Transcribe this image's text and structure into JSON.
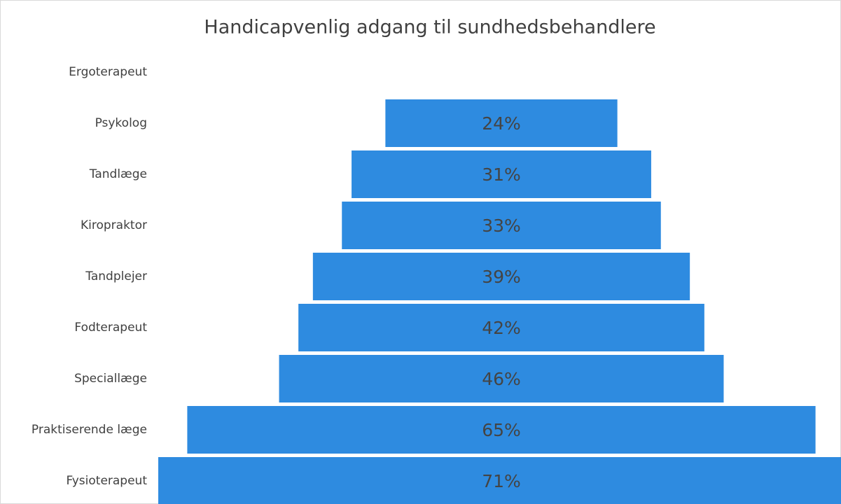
{
  "chart_data": {
    "type": "funnel",
    "title": "Handicapvenlig adgang til sundhedsbehandlere",
    "categories": [
      "Ergoterapeut",
      "Psykolog",
      "Tandlæge",
      "Kiropraktor",
      "Tandplejer",
      "Fodterapeut",
      "Speciallæge",
      "Praktiserende læge",
      "Fysioterapeut"
    ],
    "values": [
      null,
      24,
      31,
      33,
      39,
      42,
      46,
      65,
      71
    ],
    "value_labels": [
      null,
      "24%",
      "31%",
      "33%",
      "39%",
      "42%",
      "46%",
      "65%",
      "71%"
    ],
    "color": "#2e8be0"
  }
}
